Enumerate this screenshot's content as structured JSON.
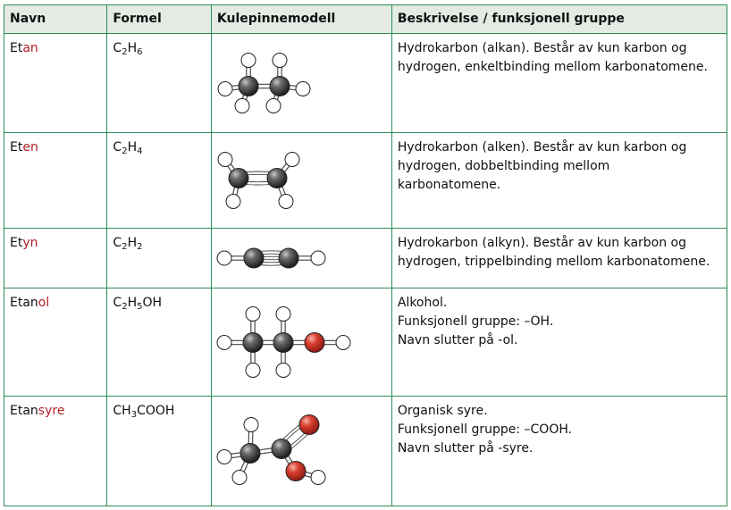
{
  "headers": {
    "name": "Navn",
    "formula": "Formel",
    "model": "Kulepinnemodell",
    "description": "Beskrivelse / funksjonell gruppe"
  },
  "rows": [
    {
      "name_stem": "Et",
      "name_suffix": "an",
      "formula": [
        {
          "t": "C"
        },
        {
          "sub": "2"
        },
        {
          "t": "H"
        },
        {
          "sub": "6"
        }
      ],
      "model": "ethane-model",
      "description": [
        "Hydrokarbon (alkan). Består av kun karbon og",
        "hydrogen, enkeltbinding mellom karbonatomene."
      ]
    },
    {
      "name_stem": "Et",
      "name_suffix": "en",
      "formula": [
        {
          "t": "C"
        },
        {
          "sub": "2"
        },
        {
          "t": "H"
        },
        {
          "sub": "4"
        }
      ],
      "model": "ethene-model",
      "description": [
        "Hydrokarbon (alken). Består av kun karbon og",
        "hydrogen, dobbeltbinding mellom",
        "karbonatomene."
      ]
    },
    {
      "name_stem": "Et",
      "name_suffix": "yn",
      "formula": [
        {
          "t": "C"
        },
        {
          "sub": "2"
        },
        {
          "t": "H"
        },
        {
          "sub": "2"
        }
      ],
      "model": "ethyne-model",
      "description": [
        "Hydrokarbon (alkyn). Består av kun karbon og",
        "hydrogen, trippelbinding mellom karbonatomene."
      ]
    },
    {
      "name_stem": "Etan",
      "name_suffix": "ol",
      "formula": [
        {
          "t": "C"
        },
        {
          "sub": "2"
        },
        {
          "t": "H"
        },
        {
          "sub": "5"
        },
        {
          "t": "OH"
        }
      ],
      "model": "ethanol-model",
      "description": [
        "Alkohol.",
        "Funksjonell gruppe: –OH.",
        "Navn slutter på -ol."
      ]
    },
    {
      "name_stem": "Etan",
      "name_suffix": "syre",
      "formula": [
        {
          "t": "CH"
        },
        {
          "sub": "3"
        },
        {
          "t": "COOH"
        }
      ],
      "model": "acetic-acid-model",
      "description": [
        "Organisk syre.",
        "Funksjonell gruppe: –COOH.",
        "Navn slutter på -syre."
      ]
    }
  ],
  "colors": {
    "border": "#2e8b57",
    "header_bg": "#e4ebe4",
    "suffix_text": "#b21f24",
    "carbon": "#3a3a3a",
    "hydrogen": "#ffffff",
    "oxygen": "#cc2b22"
  }
}
